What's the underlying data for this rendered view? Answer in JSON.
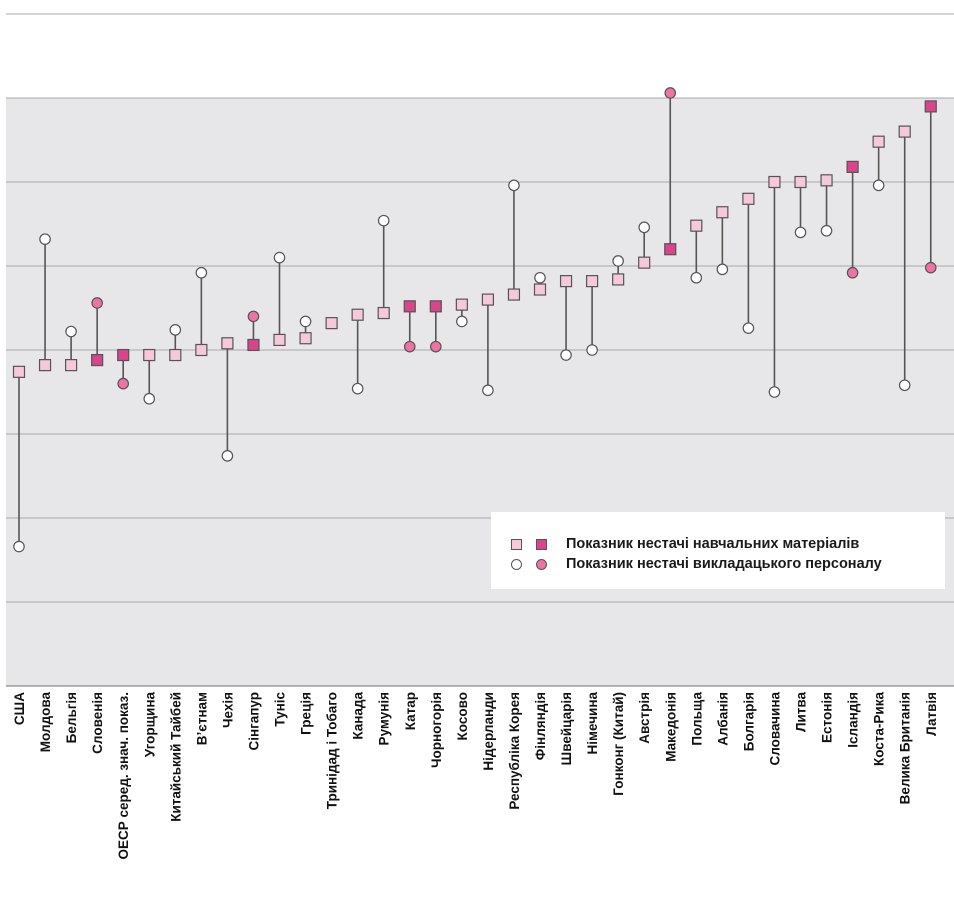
{
  "chart_data": {
    "type": "dot-range",
    "title": "",
    "xlabel": "",
    "ylabel": "",
    "ylim": [
      -2.5,
      1.5
    ],
    "grid": true,
    "legend_position": "bottom-right",
    "colors": {
      "square_light": "#f6c8da",
      "square_dark": "#d9448a",
      "circle_open": "#ffffff",
      "circle_dark": "#ee73a4",
      "connector": "#555555",
      "plot_background": "#e7e7e9"
    },
    "series": [
      {
        "name": "Показник нестачі навчальних матеріалів",
        "marker": "square"
      },
      {
        "name": "Показник нестачі викладацького персоналу",
        "marker": "circle"
      }
    ],
    "categories": [
      "США",
      "Молдова",
      "Бельгія",
      "Словенія",
      "ОЕСР серед. знач. показ.",
      "Угорщина",
      "Китайський Тайбей",
      "В’єтнам",
      "Чехія",
      "Сінгапур",
      "Туніс",
      "Греція",
      "Тринідад і Тобаго",
      "Канада",
      "Румунія",
      "Катар",
      "Чорногорія",
      "Косово",
      "Нідерланди",
      "Республіка Корея",
      "Фінляндія",
      "Швейцарія",
      "Німечина",
      "Гонконг (Китай)",
      "Австрія",
      "Македонія",
      "Польща",
      "Албанія",
      "Болгарія",
      "Словачина",
      "Литва",
      "Естонія",
      "Ісландія",
      "Коста-Рика",
      "Велика Британія",
      "Латвія"
    ],
    "materials": [
      -0.63,
      -0.59,
      -0.59,
      -0.56,
      -0.53,
      -0.53,
      -0.53,
      -0.5,
      -0.46,
      -0.47,
      -0.44,
      -0.43,
      -0.34,
      -0.29,
      -0.28,
      -0.24,
      -0.24,
      -0.23,
      -0.2,
      -0.17,
      -0.14,
      -0.09,
      -0.09,
      -0.08,
      0.02,
      0.1,
      0.24,
      0.32,
      0.4,
      0.5,
      0.5,
      0.51,
      0.59,
      0.74,
      0.8,
      0.95
    ],
    "teachers": [
      -1.67,
      0.16,
      -0.39,
      -0.22,
      -0.7,
      -0.79,
      -0.38,
      -0.04,
      -1.13,
      -0.3,
      0.05,
      -0.33,
      -0.34,
      -0.73,
      0.27,
      -0.48,
      -0.48,
      -0.33,
      -0.74,
      0.48,
      -0.07,
      -0.53,
      -0.5,
      0.03,
      0.23,
      1.03,
      -0.07,
      -0.02,
      -0.37,
      -0.75,
      0.2,
      0.21,
      -0.04,
      0.48,
      -0.71,
      -0.01
    ],
    "highlight": [
      false,
      false,
      false,
      true,
      true,
      false,
      false,
      false,
      false,
      true,
      false,
      false,
      false,
      false,
      false,
      true,
      true,
      false,
      false,
      false,
      false,
      false,
      false,
      false,
      false,
      true,
      false,
      false,
      false,
      false,
      false,
      false,
      true,
      false,
      false,
      true
    ]
  },
  "legend": {
    "materials_label": "Показник нестачі навчальних матеріалів",
    "teachers_label": "Показник нестачі викладацького персоналу"
  }
}
